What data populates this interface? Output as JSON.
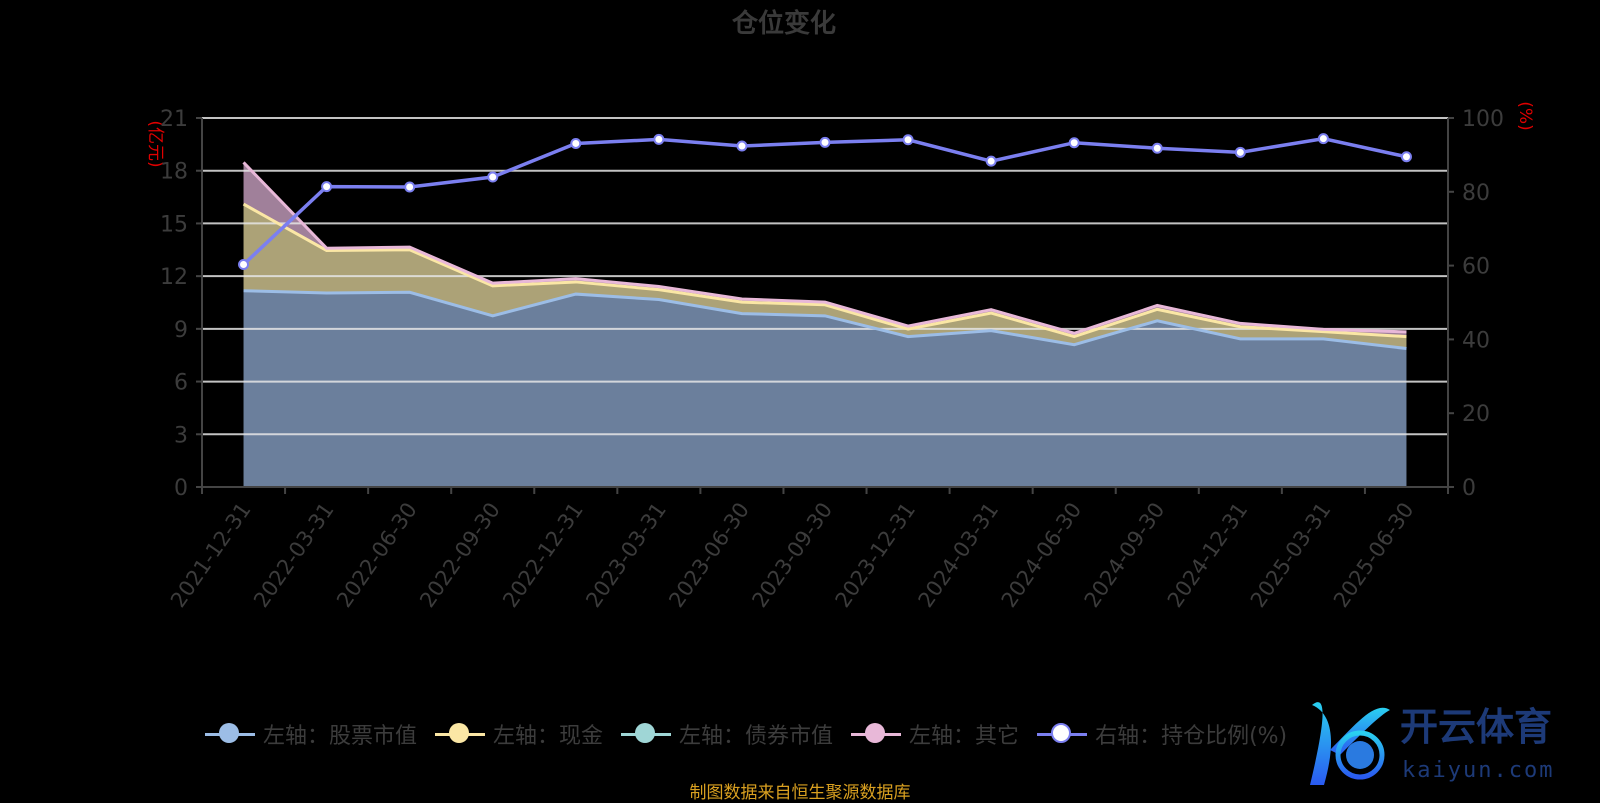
{
  "chart_data": {
    "type": "area",
    "title": "仓位变化",
    "left_axis_label": "(亿元)",
    "right_axis_label": "(%)",
    "ylim_left": [
      0,
      21
    ],
    "yticks_left": [
      0,
      3,
      6,
      9,
      12,
      15,
      18,
      21
    ],
    "ylim_right": [
      0,
      100
    ],
    "yticks_right": [
      0,
      20,
      40,
      60,
      80,
      100
    ],
    "grid": true,
    "legend_position": "bottom",
    "categories": [
      "2021-12-31",
      "2022-03-31",
      "2022-06-30",
      "2022-09-30",
      "2022-12-31",
      "2023-03-31",
      "2023-06-30",
      "2023-09-30",
      "2023-12-31",
      "2024-03-31",
      "2024-06-30",
      "2024-09-30",
      "2024-12-31",
      "2025-03-31",
      "2025-06-30"
    ],
    "series": [
      {
        "name": "左轴：股票市值",
        "axis": "left",
        "stack": true,
        "color": "#9cbde6",
        "fill": "#6b7f9c",
        "values": [
          11.17,
          11.04,
          11.08,
          9.74,
          10.98,
          10.67,
          9.87,
          9.74,
          8.56,
          8.9,
          8.1,
          9.46,
          8.43,
          8.43,
          7.88
        ]
      },
      {
        "name": "左轴：现金",
        "axis": "left",
        "stack": true,
        "color": "#fbe7a5",
        "fill": "#aca277",
        "values": [
          4.93,
          2.42,
          2.42,
          1.71,
          0.69,
          0.56,
          0.65,
          0.63,
          0.43,
          1.0,
          0.46,
          0.65,
          0.69,
          0.41,
          0.68
        ]
      },
      {
        "name": "左轴：债券市值",
        "axis": "left",
        "stack": true,
        "color": "#9fd6d6",
        "fill": "#7fa7a7",
        "values": [
          0,
          0,
          0,
          0,
          0,
          0,
          0,
          0,
          0,
          0,
          0,
          0,
          0,
          0,
          0
        ]
      },
      {
        "name": "左轴：其它",
        "axis": "left",
        "stack": true,
        "color": "#e8b8d8",
        "fill": "#a0809a",
        "values": [
          2.37,
          0.13,
          0.15,
          0.15,
          0.19,
          0.18,
          0.18,
          0.15,
          0.17,
          0.19,
          0.19,
          0.22,
          0.19,
          0.13,
          0.27
        ]
      },
      {
        "name": "右轴：持仓比例(%)",
        "axis": "right",
        "type": "line",
        "color": "#7b7ff0",
        "values": [
          60.3,
          81.4,
          81.3,
          84.0,
          93.1,
          94.2,
          92.4,
          93.4,
          94.1,
          88.3,
          93.3,
          91.8,
          90.7,
          94.4,
          89.5
        ]
      }
    ]
  },
  "source": "制图数据来自恒生聚源数据库",
  "watermark": {
    "brand": "开云体育",
    "domain": "kaiyun.com"
  }
}
